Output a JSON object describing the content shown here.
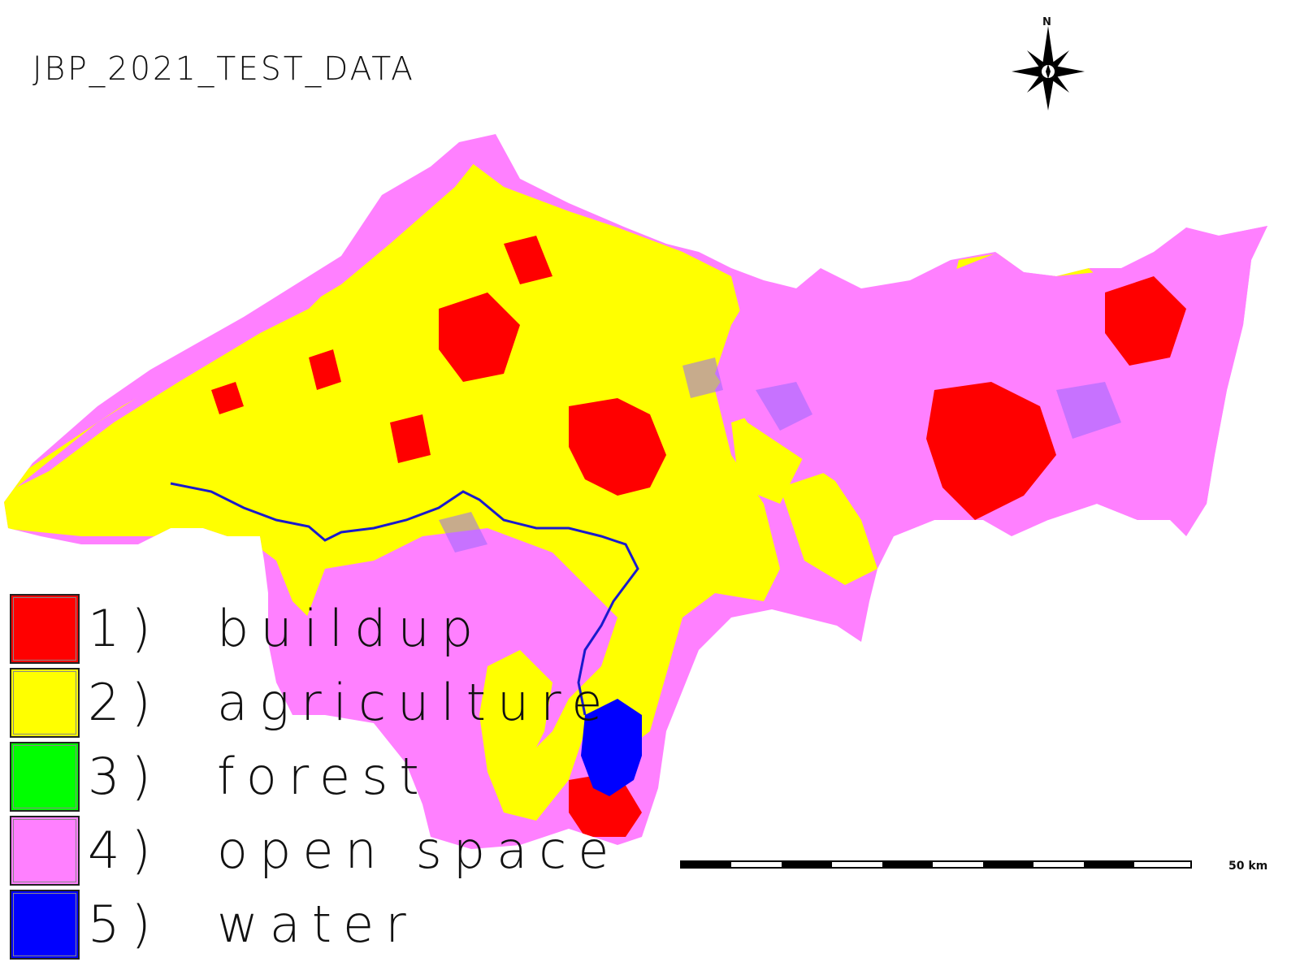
{
  "map": {
    "title": "JBP_2021_TEST_DATA",
    "north_label": "N",
    "scale_label": "50 km"
  },
  "legend": {
    "items": [
      {
        "label": "1)  buildup",
        "color": "#ff0000"
      },
      {
        "label": "2)  agriculture",
        "color": "#ffff00"
      },
      {
        "label": "3)  forest",
        "color": "#00ff00"
      },
      {
        "label": "4)  open space",
        "color": "#ff80ff"
      },
      {
        "label": "5)  water",
        "color": "#0000ff"
      }
    ]
  },
  "colors": {
    "buildup": "#ff0000",
    "agriculture": "#ffff00",
    "forest": "#00ff00",
    "open_space": "#ff80ff",
    "water": "#0000ff",
    "accent_purple": "#9966ff"
  }
}
